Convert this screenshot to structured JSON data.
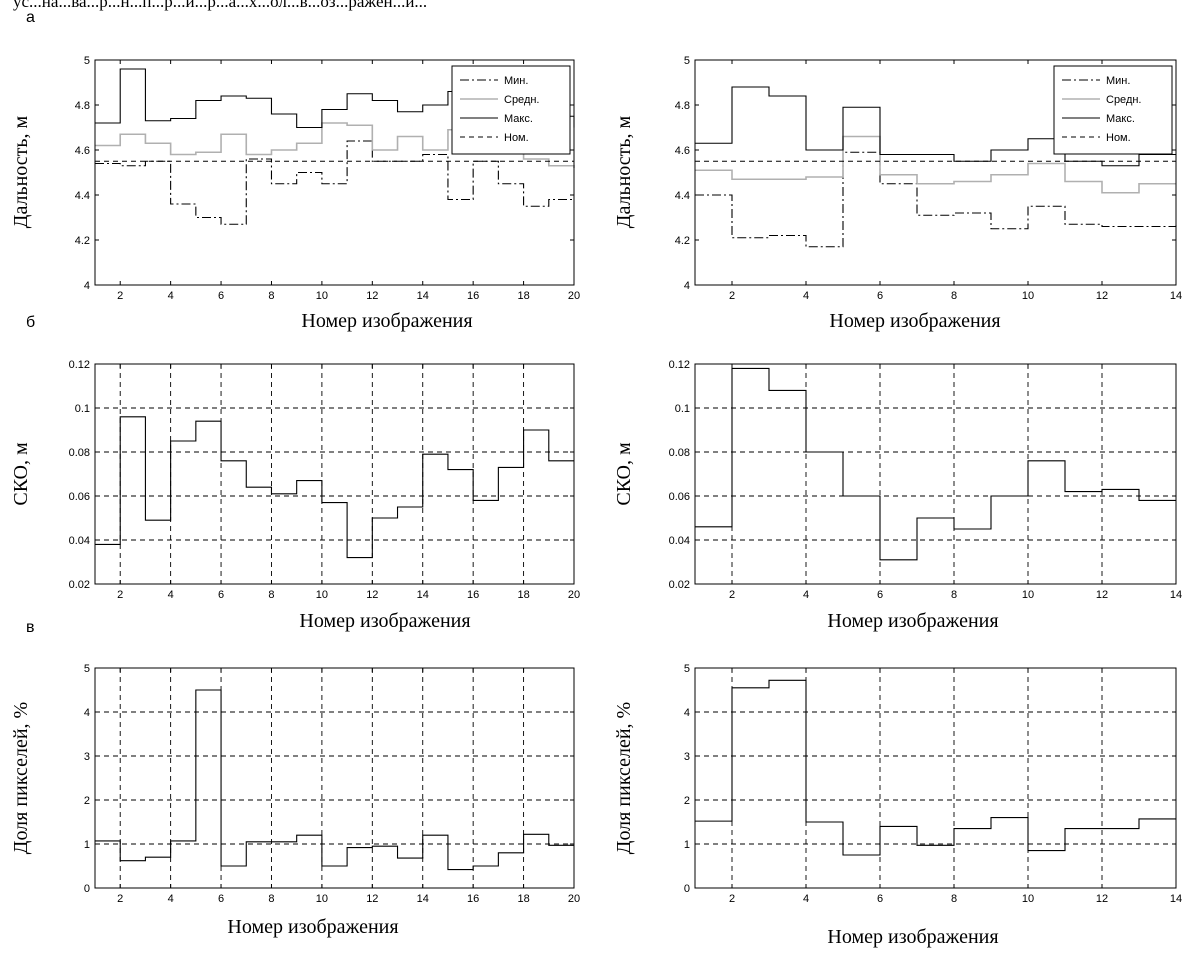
{
  "caption_fragment": "ус...на...ва...р...н...п...р...и...р...а...х...ол...в...оз...ражен...и...",
  "panel_letters": {
    "a": "а",
    "b": "б",
    "c": "в"
  },
  "colors": {
    "axis": "#000000",
    "grid": "#000000",
    "min": "#000000",
    "mean": "#b0b0b0",
    "max": "#000000",
    "nom": "#000000",
    "series": "#000000"
  },
  "chart_data": [
    {
      "type": "line",
      "panel": "a-left",
      "xlabel": "Номер изображения",
      "ylabel": "Дальность, м",
      "xlim": [
        1,
        20
      ],
      "ylim": [
        4,
        5
      ],
      "xticks": [
        2,
        4,
        6,
        8,
        10,
        12,
        14,
        16,
        18,
        20
      ],
      "yticks": [
        4,
        4.2,
        4.4,
        4.6,
        4.8,
        5
      ],
      "grid": false,
      "step": true,
      "legend": {
        "placement": "top-right",
        "entries": [
          "Мин.",
          "Средн.",
          "Макс.",
          "Ном."
        ]
      },
      "x": [
        1,
        2,
        3,
        4,
        5,
        6,
        7,
        8,
        9,
        10,
        11,
        12,
        13,
        14,
        15,
        16,
        17,
        18,
        19,
        20
      ],
      "series": [
        {
          "name": "Мин.",
          "style": "dashdot",
          "color": "#000000",
          "values": [
            4.54,
            4.53,
            4.55,
            4.36,
            4.3,
            4.27,
            4.56,
            4.45,
            4.5,
            4.45,
            4.64,
            4.55,
            4.55,
            4.58,
            4.38,
            4.55,
            4.45,
            4.35,
            4.38,
            4.38
          ]
        },
        {
          "name": "Средн.",
          "style": "solid",
          "color": "#b0b0b0",
          "values": [
            4.62,
            4.67,
            4.63,
            4.58,
            4.59,
            4.67,
            4.58,
            4.6,
            4.63,
            4.72,
            4.71,
            4.6,
            4.66,
            4.6,
            4.69,
            4.61,
            4.63,
            4.56,
            4.53,
            4.52
          ]
        },
        {
          "name": "Макс.",
          "style": "solid",
          "color": "#000000",
          "values": [
            4.72,
            4.96,
            4.73,
            4.74,
            4.82,
            4.84,
            4.83,
            4.76,
            4.7,
            4.78,
            4.85,
            4.82,
            4.77,
            4.8,
            4.86,
            4.82,
            4.83,
            4.76,
            4.75,
            4.7
          ]
        },
        {
          "name": "Ном.",
          "style": "dashed",
          "color": "#000000",
          "values": [
            4.55,
            4.55,
            4.55,
            4.55,
            4.55,
            4.55,
            4.55,
            4.55,
            4.55,
            4.55,
            4.55,
            4.55,
            4.55,
            4.55,
            4.55,
            4.55,
            4.55,
            4.55,
            4.55,
            4.55
          ]
        }
      ]
    },
    {
      "type": "line",
      "panel": "a-right",
      "xlabel": "Номер изображения",
      "ylabel": "Дальность, м",
      "xlim": [
        1,
        14
      ],
      "ylim": [
        4,
        5
      ],
      "xticks": [
        2,
        4,
        6,
        8,
        10,
        12,
        14
      ],
      "yticks": [
        4,
        4.2,
        4.4,
        4.6,
        4.8,
        5
      ],
      "grid": false,
      "step": true,
      "legend": {
        "placement": "top-right",
        "entries": [
          "Мин.",
          "Средн.",
          "Макс.",
          "Ном."
        ]
      },
      "x": [
        1,
        2,
        3,
        4,
        5,
        6,
        7,
        8,
        9,
        10,
        11,
        12,
        13,
        14
      ],
      "series": [
        {
          "name": "Мин.",
          "style": "dashdot",
          "color": "#000000",
          "values": [
            4.4,
            4.21,
            4.22,
            4.17,
            4.59,
            4.45,
            4.31,
            4.32,
            4.25,
            4.35,
            4.27,
            4.26,
            4.26,
            4.27
          ]
        },
        {
          "name": "Средн.",
          "style": "solid",
          "color": "#b0b0b0",
          "values": [
            4.51,
            4.47,
            4.47,
            4.48,
            4.66,
            4.49,
            4.45,
            4.46,
            4.49,
            4.54,
            4.46,
            4.41,
            4.45,
            4.45
          ]
        },
        {
          "name": "Макс.",
          "style": "solid",
          "color": "#000000",
          "values": [
            4.63,
            4.88,
            4.84,
            4.6,
            4.79,
            4.58,
            4.58,
            4.55,
            4.6,
            4.65,
            4.55,
            4.53,
            4.58,
            4.58
          ]
        },
        {
          "name": "Ном.",
          "style": "dashed",
          "color": "#000000",
          "values": [
            4.55,
            4.55,
            4.55,
            4.55,
            4.55,
            4.55,
            4.55,
            4.55,
            4.55,
            4.55,
            4.55,
            4.55,
            4.55,
            4.55
          ]
        }
      ]
    },
    {
      "type": "line",
      "panel": "b-left",
      "xlabel": "Номер изображения",
      "ylabel": "СКО, м",
      "xlim": [
        1,
        20
      ],
      "ylim": [
        0.02,
        0.12
      ],
      "xticks": [
        2,
        4,
        6,
        8,
        10,
        12,
        14,
        16,
        18,
        20
      ],
      "yticks": [
        0.02,
        0.04,
        0.06,
        0.08,
        0.1,
        0.12
      ],
      "grid": true,
      "step": true,
      "x": [
        1,
        2,
        3,
        4,
        5,
        6,
        7,
        8,
        9,
        10,
        11,
        12,
        13,
        14,
        15,
        16,
        17,
        18,
        19,
        20
      ],
      "series": [
        {
          "style": "solid",
          "color": "#000000",
          "values": [
            0.038,
            0.096,
            0.049,
            0.085,
            0.094,
            0.076,
            0.064,
            0.061,
            0.067,
            0.057,
            0.032,
            0.05,
            0.055,
            0.079,
            0.072,
            0.058,
            0.073,
            0.09,
            0.076,
            0.076
          ]
        }
      ]
    },
    {
      "type": "line",
      "panel": "b-right",
      "xlabel": "Номер изображения",
      "ylabel": "СКО, м",
      "xlim": [
        1,
        14
      ],
      "ylim": [
        0.02,
        0.12
      ],
      "xticks": [
        2,
        4,
        6,
        8,
        10,
        12,
        14
      ],
      "yticks": [
        0.02,
        0.04,
        0.06,
        0.08,
        0.1,
        0.12
      ],
      "grid": true,
      "step": true,
      "x": [
        1,
        2,
        3,
        4,
        5,
        6,
        7,
        8,
        9,
        10,
        11,
        12,
        13,
        14
      ],
      "series": [
        {
          "style": "solid",
          "color": "#000000",
          "values": [
            0.046,
            0.118,
            0.108,
            0.08,
            0.06,
            0.031,
            0.05,
            0.045,
            0.06,
            0.076,
            0.062,
            0.063,
            0.058,
            0.058
          ]
        }
      ]
    },
    {
      "type": "line",
      "panel": "c-left",
      "xlabel": "Номер изображения",
      "ylabel": "Доля пикселей, %",
      "xlim": [
        1,
        20
      ],
      "ylim": [
        0,
        5
      ],
      "xticks": [
        2,
        4,
        6,
        8,
        10,
        12,
        14,
        16,
        18,
        20
      ],
      "yticks": [
        0,
        1,
        2,
        3,
        4,
        5
      ],
      "grid": true,
      "step": true,
      "x": [
        1,
        2,
        3,
        4,
        5,
        6,
        7,
        8,
        9,
        10,
        11,
        12,
        13,
        14,
        15,
        16,
        17,
        18,
        19,
        20
      ],
      "series": [
        {
          "style": "solid",
          "color": "#000000",
          "values": [
            1.07,
            0.62,
            0.7,
            1.07,
            4.5,
            0.5,
            1.05,
            1.05,
            1.2,
            0.5,
            0.92,
            0.95,
            0.68,
            1.2,
            0.42,
            0.5,
            0.8,
            1.22,
            0.97,
            0.97
          ]
        }
      ]
    },
    {
      "type": "line",
      "panel": "c-right",
      "xlabel": "Номер изображения",
      "ylabel": "Доля пикселей, %",
      "xlim": [
        1,
        14
      ],
      "ylim": [
        0,
        5
      ],
      "xticks": [
        2,
        4,
        6,
        8,
        10,
        12,
        14
      ],
      "yticks": [
        0,
        1,
        2,
        3,
        4,
        5
      ],
      "grid": true,
      "step": true,
      "x": [
        1,
        2,
        3,
        4,
        5,
        6,
        7,
        8,
        9,
        10,
        11,
        12,
        13,
        14
      ],
      "series": [
        {
          "style": "solid",
          "color": "#000000",
          "values": [
            1.52,
            4.55,
            4.72,
            1.5,
            0.75,
            1.4,
            0.97,
            1.35,
            1.6,
            0.85,
            1.35,
            1.35,
            1.57,
            1.57
          ]
        }
      ]
    }
  ]
}
